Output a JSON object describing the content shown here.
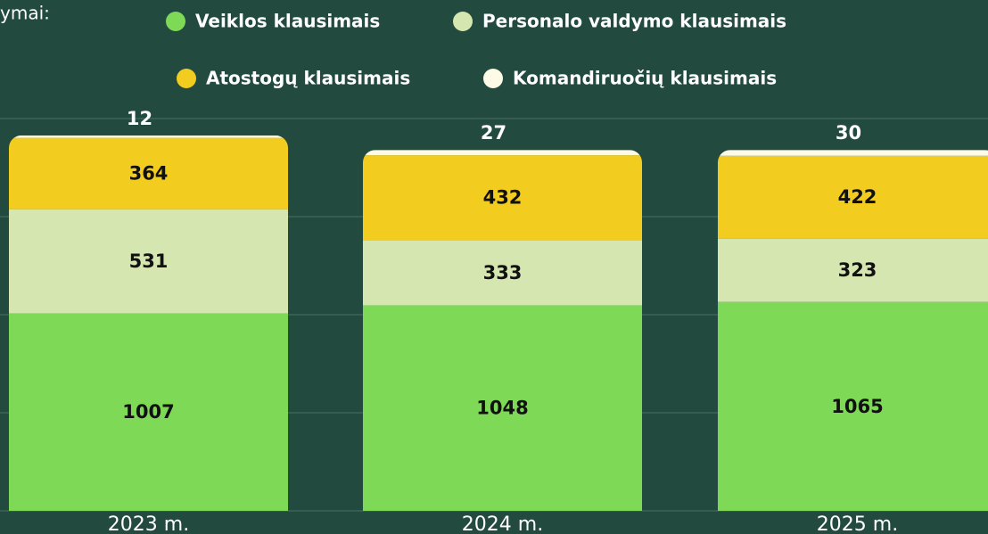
{
  "chart_data": {
    "type": "stacked_bar",
    "title": "ymai:",
    "categories": [
      "2023 m.",
      "2024 m.",
      "2025 m."
    ],
    "series": [
      {
        "name": "Veiklos klausimais",
        "color": "#7ed957",
        "values": [
          1007,
          1048,
          1065
        ]
      },
      {
        "name": "Personalo valdymo klausimais",
        "color": "#d6e6b0",
        "values": [
          531,
          333,
          323
        ]
      },
      {
        "name": "Atostogų klausimais",
        "color": "#f2cd1f",
        "values": [
          364,
          432,
          422
        ]
      },
      {
        "name": "Komandiruočių klausimais",
        "color": "#fdfbe6",
        "values": [
          12,
          27,
          30
        ]
      }
    ],
    "ylim": [
      0,
      2000
    ],
    "yticks": [
      0,
      500,
      1000,
      1500,
      2000
    ],
    "grid": true
  }
}
